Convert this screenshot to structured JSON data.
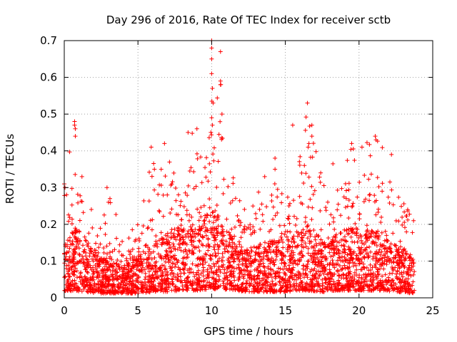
{
  "chart_data": {
    "type": "scatter",
    "title": "Day 296 of 2016, Rate Of TEC Index for receiver sctb",
    "xlabel": "GPS time / hours",
    "ylabel": "ROTI / TECUs",
    "xlim": [
      0,
      25
    ],
    "ylim": [
      0,
      0.7
    ],
    "x_ticks": [
      "0",
      "5",
      "10",
      "15",
      "20",
      "25"
    ],
    "y_ticks": [
      "0",
      "0.1",
      "0.2",
      "0.3",
      "0.4",
      "0.5",
      "0.6",
      "0.7"
    ],
    "x_tick_values": [
      0,
      5,
      10,
      15,
      20,
      25
    ],
    "y_tick_values": [
      0,
      0.1,
      0.2,
      0.3,
      0.4,
      0.5,
      0.6,
      0.7
    ],
    "grid": true,
    "marker": "+",
    "series_color": "#ff0000",
    "envelope": [
      {
        "t": 0.0,
        "base": 0.04,
        "spread": 0.14,
        "peak": 0.32
      },
      {
        "t": 0.7,
        "base": 0.05,
        "spread": 0.17,
        "peak": 0.48
      },
      {
        "t": 1.3,
        "base": 0.04,
        "spread": 0.16,
        "peak": 0.33
      },
      {
        "t": 2.0,
        "base": 0.03,
        "spread": 0.12,
        "peak": 0.22
      },
      {
        "t": 3.0,
        "base": 0.03,
        "spread": 0.1,
        "peak": 0.3
      },
      {
        "t": 4.0,
        "base": 0.03,
        "spread": 0.07,
        "peak": 0.16
      },
      {
        "t": 5.0,
        "base": 0.03,
        "spread": 0.1,
        "peak": 0.22
      },
      {
        "t": 6.0,
        "base": 0.04,
        "spread": 0.14,
        "peak": 0.41
      },
      {
        "t": 7.0,
        "base": 0.04,
        "spread": 0.16,
        "peak": 0.42
      },
      {
        "t": 8.0,
        "base": 0.05,
        "spread": 0.18,
        "peak": 0.45
      },
      {
        "t": 9.0,
        "base": 0.05,
        "spread": 0.18,
        "peak": 0.46
      },
      {
        "t": 10.0,
        "base": 0.06,
        "spread": 0.22,
        "peak": 0.7
      },
      {
        "t": 10.5,
        "base": 0.06,
        "spread": 0.2,
        "peak": 0.67
      },
      {
        "t": 11.5,
        "base": 0.05,
        "spread": 0.14,
        "peak": 0.33
      },
      {
        "t": 12.5,
        "base": 0.04,
        "spread": 0.12,
        "peak": 0.24
      },
      {
        "t": 14.0,
        "base": 0.04,
        "spread": 0.14,
        "peak": 0.38
      },
      {
        "t": 15.0,
        "base": 0.04,
        "spread": 0.14,
        "peak": 0.29
      },
      {
        "t": 16.0,
        "base": 0.05,
        "spread": 0.16,
        "peak": 0.47
      },
      {
        "t": 16.5,
        "base": 0.05,
        "spread": 0.18,
        "peak": 0.53
      },
      {
        "t": 17.5,
        "base": 0.04,
        "spread": 0.14,
        "peak": 0.34
      },
      {
        "t": 18.5,
        "base": 0.05,
        "spread": 0.16,
        "peak": 0.41
      },
      {
        "t": 19.5,
        "base": 0.05,
        "spread": 0.17,
        "peak": 0.42
      },
      {
        "t": 20.5,
        "base": 0.05,
        "spread": 0.17,
        "peak": 0.43
      },
      {
        "t": 21.5,
        "base": 0.05,
        "spread": 0.16,
        "peak": 0.44
      },
      {
        "t": 22.5,
        "base": 0.04,
        "spread": 0.13,
        "peak": 0.39
      },
      {
        "t": 23.7,
        "base": 0.03,
        "spread": 0.1,
        "peak": 0.24
      }
    ],
    "highlight_points": [
      {
        "x": 0.0,
        "y": 0.31
      },
      {
        "x": 0.05,
        "y": 0.3
      },
      {
        "x": 0.7,
        "y": 0.48
      },
      {
        "x": 0.7,
        "y": 0.47
      },
      {
        "x": 0.75,
        "y": 0.46
      },
      {
        "x": 0.75,
        "y": 0.44
      },
      {
        "x": 1.2,
        "y": 0.33
      },
      {
        "x": 2.9,
        "y": 0.3
      },
      {
        "x": 5.9,
        "y": 0.41
      },
      {
        "x": 6.8,
        "y": 0.42
      },
      {
        "x": 8.4,
        "y": 0.45
      },
      {
        "x": 9.0,
        "y": 0.46
      },
      {
        "x": 10.0,
        "y": 0.7
      },
      {
        "x": 10.0,
        "y": 0.68
      },
      {
        "x": 10.0,
        "y": 0.65
      },
      {
        "x": 10.0,
        "y": 0.61
      },
      {
        "x": 10.05,
        "y": 0.57
      },
      {
        "x": 10.1,
        "y": 0.53
      },
      {
        "x": 10.0,
        "y": 0.49
      },
      {
        "x": 10.05,
        "y": 0.47
      },
      {
        "x": 9.95,
        "y": 0.45
      },
      {
        "x": 10.6,
        "y": 0.67
      },
      {
        "x": 10.6,
        "y": 0.59
      },
      {
        "x": 10.6,
        "y": 0.58
      },
      {
        "x": 10.7,
        "y": 0.5
      },
      {
        "x": 15.5,
        "y": 0.47
      },
      {
        "x": 16.5,
        "y": 0.53
      },
      {
        "x": 16.8,
        "y": 0.47
      },
      {
        "x": 16.8,
        "y": 0.44
      },
      {
        "x": 16.6,
        "y": 0.42
      },
      {
        "x": 16.55,
        "y": 0.41
      },
      {
        "x": 19.5,
        "y": 0.42
      },
      {
        "x": 20.2,
        "y": 0.41
      },
      {
        "x": 21.1,
        "y": 0.44
      },
      {
        "x": 21.15,
        "y": 0.43
      },
      {
        "x": 22.2,
        "y": 0.39
      },
      {
        "x": 17.4,
        "y": 0.34
      },
      {
        "x": 14.3,
        "y": 0.38
      },
      {
        "x": 14.3,
        "y": 0.35
      },
      {
        "x": 13.6,
        "y": 0.33
      },
      {
        "x": 12.8,
        "y": 0.25
      },
      {
        "x": 3.1,
        "y": 0.27
      },
      {
        "x": 3.0,
        "y": 0.26
      },
      {
        "x": 23.3,
        "y": 0.24
      },
      {
        "x": 23.7,
        "y": 0.21
      }
    ]
  }
}
